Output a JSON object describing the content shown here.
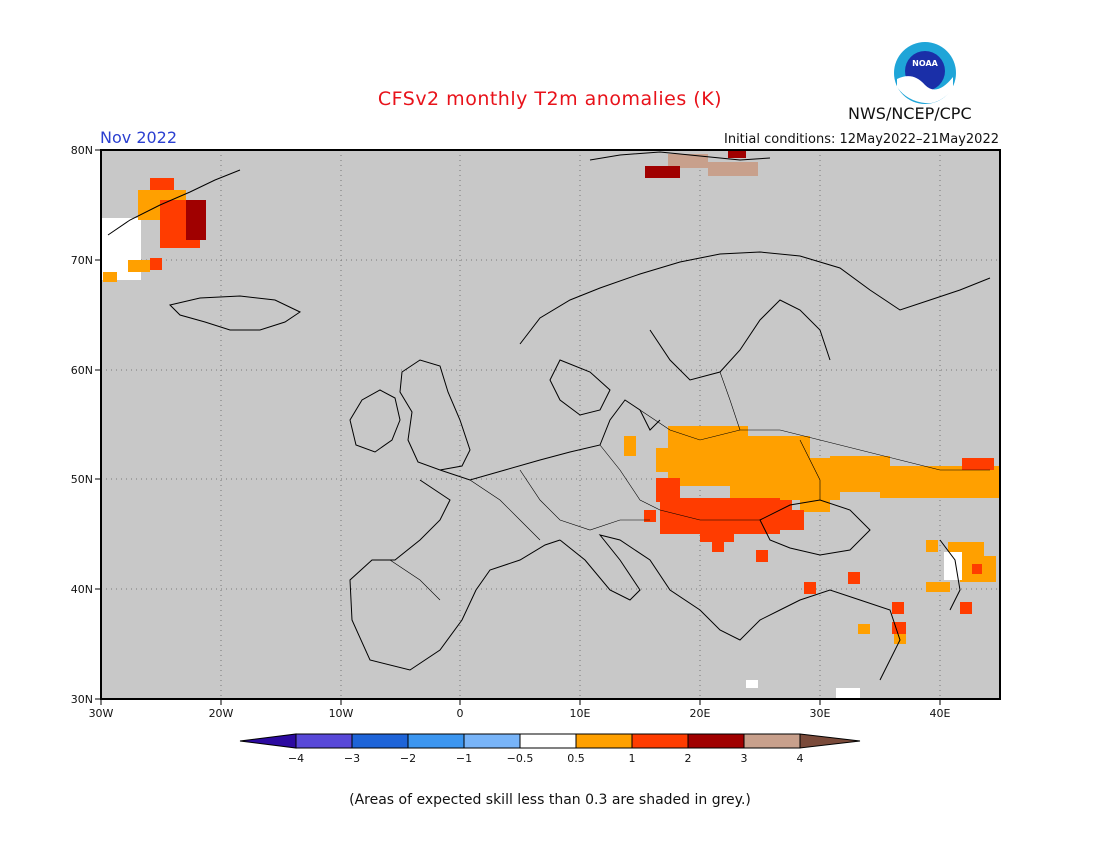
{
  "header": {
    "title": "CFSv2 monthly T2m anomalies (K)",
    "month": "Nov 2022",
    "initial_conditions": "Initial conditions: 12May2022–21May2022",
    "agency": "NWS/NCEP/CPC",
    "logo_icon": "noaa-logo-icon",
    "logo_text": "NOAA"
  },
  "map": {
    "lat_labels": [
      "80N",
      "70N",
      "60N",
      "50N",
      "40N",
      "30N"
    ],
    "lon_labels": [
      "30W",
      "20W",
      "10W",
      "0",
      "10E",
      "20E",
      "30E",
      "40E"
    ],
    "background_color": "#c8c8c8",
    "anomaly_colors": {
      "0.5-1": "#ffa000",
      "1-2": "#ff3c00",
      "2-3": "#a00000",
      "3-4": "#c8a08c"
    },
    "regions": [
      {
        "name": "greenland-east",
        "level": "0.5-1"
      },
      {
        "name": "greenland-east",
        "level": "1-2"
      },
      {
        "name": "greenland-east",
        "level": "2-3"
      },
      {
        "name": "svalbard",
        "level": "2-3"
      },
      {
        "name": "svalbard",
        "level": "3-4"
      },
      {
        "name": "eastern-europe",
        "level": "0.5-1"
      },
      {
        "name": "carpathian-basin",
        "level": "1-2"
      },
      {
        "name": "caucasus",
        "level": "0.5-1"
      },
      {
        "name": "turkey-levant",
        "level": "1-2"
      }
    ]
  },
  "colorbar": {
    "labels": [
      "−4",
      "−3",
      "−2",
      "−1",
      "−0.5",
      "0.5",
      "1",
      "2",
      "3",
      "4"
    ],
    "colors": [
      "#2c0aa0",
      "#5848d8",
      "#1e64d8",
      "#3c96f0",
      "#78b4f8",
      "#ffffff",
      "#ffa000",
      "#ff3c00",
      "#a00000",
      "#c8a08c",
      "#7a4a3a"
    ]
  },
  "footnote": "(Areas of expected skill less than 0.3 are shaded in grey.)"
}
